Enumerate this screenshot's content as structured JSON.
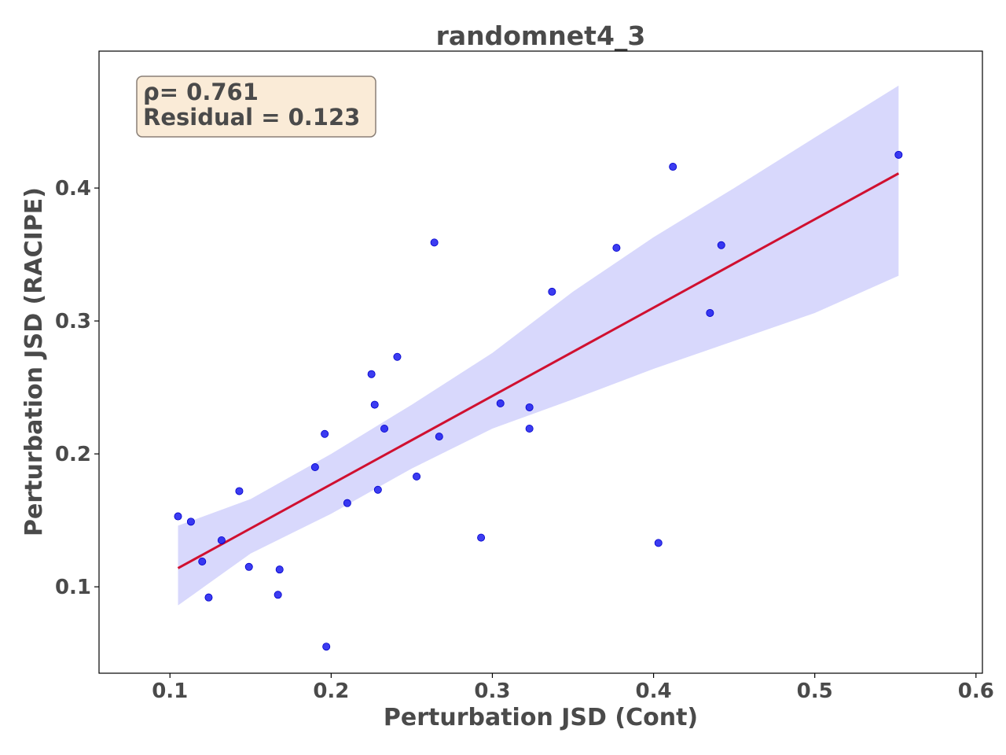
{
  "chart_data": {
    "type": "scatter",
    "title": "randomnet4_3",
    "xlabel": "Perturbation JSD (Cont)",
    "ylabel": "Perturbation JSD (RACIPE)",
    "xlim": [
      0.056,
      0.604
    ],
    "ylim": [
      0.035,
      0.503
    ],
    "xticks": [
      0.1,
      0.2,
      0.3,
      0.4,
      0.5,
      0.6
    ],
    "xtick_labels": [
      "0.1",
      "0.2",
      "0.3",
      "0.4",
      "0.5",
      "0.6"
    ],
    "yticks": [
      0.1,
      0.2,
      0.3,
      0.4
    ],
    "ytick_labels": [
      "0.1",
      "0.2",
      "0.3",
      "0.4"
    ],
    "grid": false,
    "points": [
      {
        "x": 0.105,
        "y": 0.153
      },
      {
        "x": 0.113,
        "y": 0.149
      },
      {
        "x": 0.12,
        "y": 0.119
      },
      {
        "x": 0.124,
        "y": 0.092
      },
      {
        "x": 0.132,
        "y": 0.135
      },
      {
        "x": 0.143,
        "y": 0.172
      },
      {
        "x": 0.149,
        "y": 0.115
      },
      {
        "x": 0.167,
        "y": 0.094
      },
      {
        "x": 0.168,
        "y": 0.113
      },
      {
        "x": 0.19,
        "y": 0.19
      },
      {
        "x": 0.196,
        "y": 0.215
      },
      {
        "x": 0.197,
        "y": 0.055
      },
      {
        "x": 0.21,
        "y": 0.163
      },
      {
        "x": 0.225,
        "y": 0.26
      },
      {
        "x": 0.227,
        "y": 0.237
      },
      {
        "x": 0.229,
        "y": 0.173
      },
      {
        "x": 0.233,
        "y": 0.219
      },
      {
        "x": 0.241,
        "y": 0.273
      },
      {
        "x": 0.253,
        "y": 0.183
      },
      {
        "x": 0.264,
        "y": 0.359
      },
      {
        "x": 0.267,
        "y": 0.213
      },
      {
        "x": 0.293,
        "y": 0.137
      },
      {
        "x": 0.305,
        "y": 0.238
      },
      {
        "x": 0.323,
        "y": 0.219
      },
      {
        "x": 0.323,
        "y": 0.235
      },
      {
        "x": 0.337,
        "y": 0.322
      },
      {
        "x": 0.377,
        "y": 0.355
      },
      {
        "x": 0.403,
        "y": 0.133
      },
      {
        "x": 0.412,
        "y": 0.416
      },
      {
        "x": 0.435,
        "y": 0.306
      },
      {
        "x": 0.442,
        "y": 0.357
      },
      {
        "x": 0.552,
        "y": 0.425
      }
    ],
    "regression_line": {
      "x": [
        0.105,
        0.552
      ],
      "y": [
        0.114,
        0.411
      ]
    },
    "confidence_band": {
      "x": [
        0.105,
        0.15,
        0.2,
        0.25,
        0.3,
        0.35,
        0.4,
        0.45,
        0.5,
        0.552
      ],
      "upper": [
        0.146,
        0.166,
        0.2,
        0.237,
        0.276,
        0.322,
        0.363,
        0.4,
        0.438,
        0.477
      ],
      "lower": [
        0.086,
        0.125,
        0.155,
        0.189,
        0.219,
        0.241,
        0.264,
        0.285,
        0.306,
        0.334
      ]
    },
    "colors": {
      "points": "#1a1aee",
      "line": "#d01030",
      "band": "#d8d8fc",
      "annotation_bg": "#faebd7",
      "annotation_border": "#8a7f76",
      "text": "#4a4a4a"
    },
    "annotation": {
      "rho_text": "ρ= 0.761",
      "residual_text": "Residual = 0.123",
      "placement": "top-left"
    }
  }
}
